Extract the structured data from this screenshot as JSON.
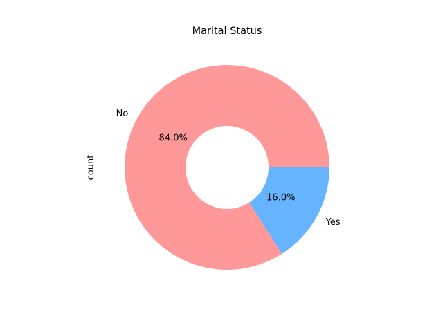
{
  "chart_data": {
    "type": "pie",
    "donut": true,
    "title": "Marital Status",
    "ylabel": "count",
    "xlabel": "",
    "slices": [
      {
        "label": "No",
        "value": 84.0,
        "pct_label": "84.0%",
        "color": "#ff9999"
      },
      {
        "label": "Yes",
        "value": 16.0,
        "pct_label": "16.0%",
        "color": "#66b3ff"
      }
    ],
    "start_angle_deg": 0,
    "direction": "counterclockwise",
    "legend": "none"
  }
}
